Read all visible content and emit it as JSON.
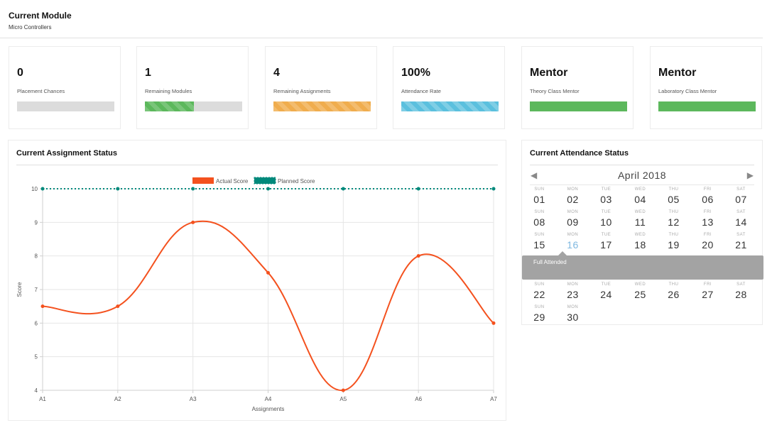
{
  "module": {
    "title": "Current Module",
    "subtitle": "Micro Controllers"
  },
  "stats": [
    {
      "value": "0",
      "label": "Placement Chances",
      "progress": 0,
      "style": "striped-green"
    },
    {
      "value": "1",
      "label": "Remaining Modules",
      "progress": 0.5,
      "style": "striped-green"
    },
    {
      "value": "4",
      "label": "Remaining Assignments",
      "progress": 1,
      "style": "striped-orange"
    },
    {
      "value": "100%",
      "label": "Attendance Rate",
      "progress": 1,
      "style": "striped-blue"
    },
    {
      "value": "Mentor",
      "label": "Theory Class Mentor",
      "progress": 1,
      "style": "solid-green"
    },
    {
      "value": "Mentor",
      "label": "Laboratory Class Mentor",
      "progress": 1,
      "style": "solid-green"
    }
  ],
  "colors": {
    "actual": "#f4511e",
    "planned": "#00897b",
    "green": "#5cb85c",
    "orange": "#f0ad4e",
    "blue": "#5bc0de",
    "today": "#7fb8e0",
    "tooltip": "#a3a3a3"
  },
  "assignments": {
    "title": "Current Assignment Status",
    "chart_data": {
      "type": "line",
      "categories": [
        "A1",
        "A2",
        "A3",
        "A4",
        "A5",
        "A6",
        "A7"
      ],
      "series": [
        {
          "name": "Actual Score",
          "values": [
            6.5,
            6.5,
            9,
            7.5,
            4,
            8,
            6
          ],
          "style": "solid-curve",
          "color": "#f4511e"
        },
        {
          "name": "Planned Score",
          "values": [
            10,
            10,
            10,
            10,
            10,
            10,
            10
          ],
          "style": "dotted",
          "color": "#00897b"
        }
      ],
      "xlabel": "Assignments",
      "ylabel": "Score",
      "ylim": [
        4,
        10
      ],
      "yticks": [
        4,
        5,
        6,
        7,
        8,
        9,
        10
      ],
      "grid": true,
      "legend": "top-center"
    }
  },
  "attendance": {
    "title": "Current Attendance Status",
    "month_label": "April 2018",
    "prev_icon": "chevron-left-icon",
    "next_icon": "chevron-right-icon",
    "weekdays": [
      "SUN",
      "MON",
      "TUE",
      "WED",
      "THU",
      "FRI",
      "SAT"
    ],
    "weeks": [
      [
        "01",
        "02",
        "03",
        "04",
        "05",
        "06",
        "07"
      ],
      [
        "08",
        "09",
        "10",
        "11",
        "12",
        "13",
        "14"
      ],
      [
        "15",
        "16",
        "17",
        "18",
        "19",
        "20",
        "21"
      ],
      [
        "22",
        "23",
        "24",
        "25",
        "26",
        "27",
        "28"
      ],
      [
        "29",
        "30",
        "",
        "",
        "",
        "",
        ""
      ]
    ],
    "today": "16",
    "tooltip": "Full Attended"
  }
}
